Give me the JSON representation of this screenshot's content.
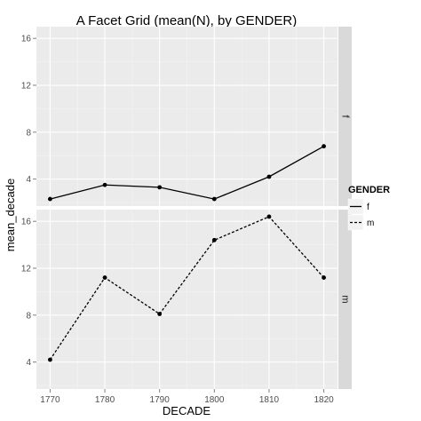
{
  "chart_data": {
    "type": "line",
    "title": "A Facet Grid (mean(N), by GENDER)",
    "xlabel": "DECADE",
    "ylabel": "mean_decade",
    "x": [
      1770,
      1780,
      1790,
      1800,
      1810,
      1820
    ],
    "xlim": [
      1767.5,
      1822.5
    ],
    "ylim": [
      1.7,
      17.0
    ],
    "x_ticks": [
      "1770",
      "1780",
      "1790",
      "1800",
      "1810",
      "1820"
    ],
    "y_ticks": [
      "4",
      "8",
      "12",
      "16"
    ],
    "grid": true,
    "legend": {
      "title": "GENDER",
      "position": "right"
    },
    "panels": [
      {
        "strip": "f",
        "series": "f",
        "linestyle": "solid"
      },
      {
        "strip": "m",
        "series": "m",
        "linestyle": "dotted"
      }
    ],
    "series": [
      {
        "name": "f",
        "values": [
          2.3,
          3.5,
          3.3,
          2.3,
          4.2,
          6.8
        ]
      },
      {
        "name": "m",
        "values": [
          4.2,
          11.2,
          8.1,
          14.4,
          16.4,
          11.2
        ]
      }
    ],
    "colors": {
      "panel_bg": "#ebebeb",
      "strip_bg": "#d9d9d9",
      "grid_major": "#ffffff",
      "line": "#000000"
    }
  }
}
